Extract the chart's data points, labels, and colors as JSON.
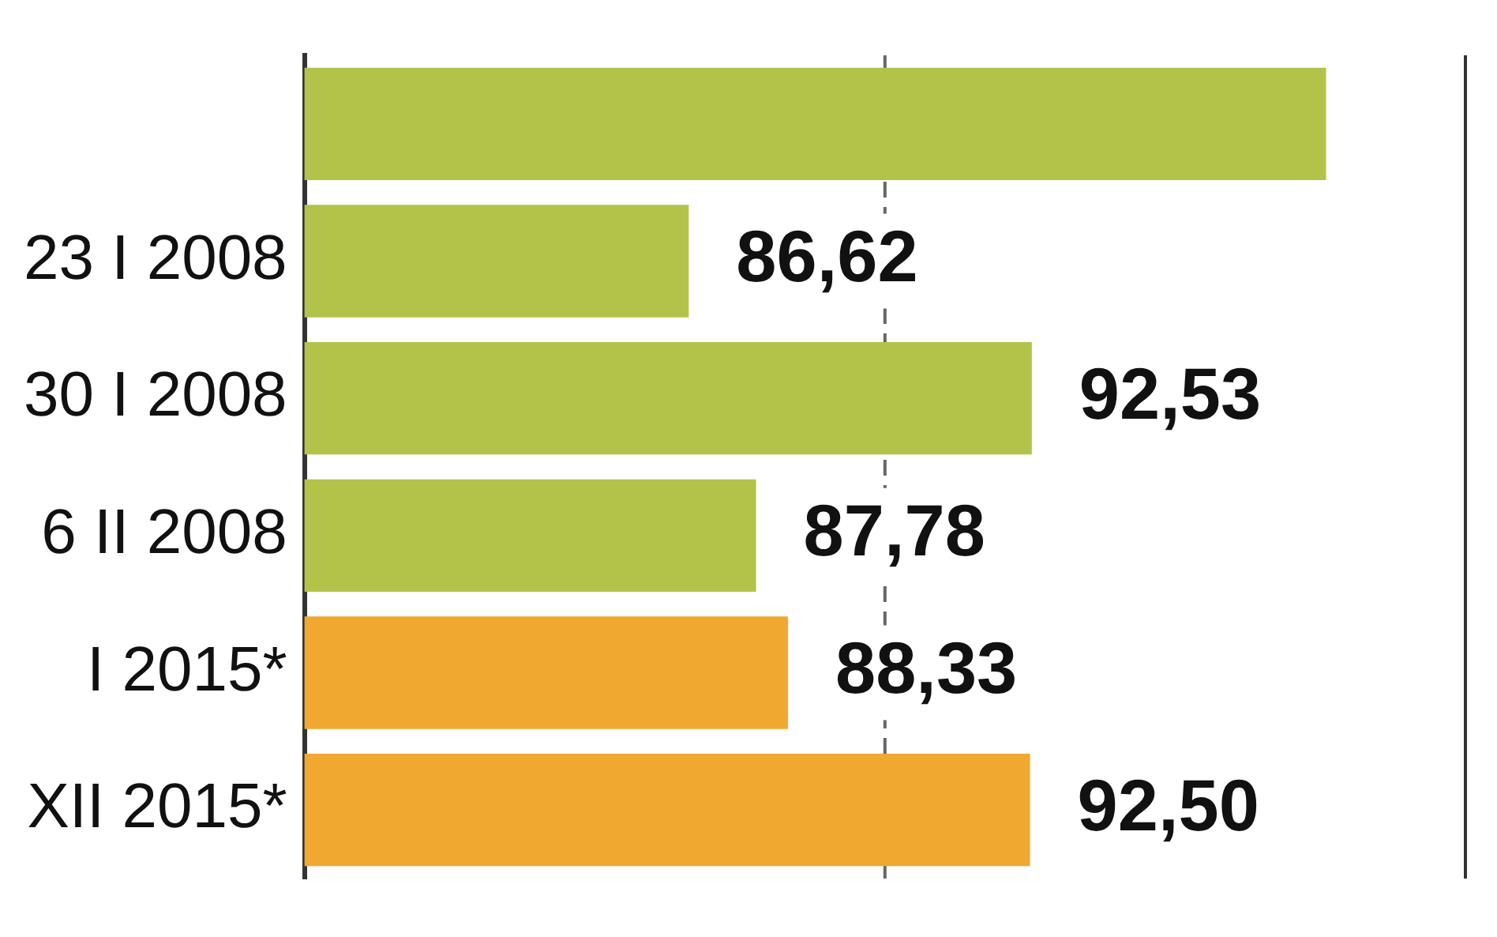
{
  "chart_data": {
    "type": "bar",
    "orientation": "horizontal",
    "categories": [
      null,
      "23 I 2008",
      "30 I 2008",
      "6 II 2008",
      "I 2015*",
      "XII 2015*"
    ],
    "values": [
      97.6,
      86.62,
      92.53,
      87.78,
      88.33,
      92.5
    ],
    "value_labels": [
      null,
      "86,62",
      "92,53",
      "87,78",
      "88,33",
      "92,50"
    ],
    "colors": [
      "#b3c34a",
      "#b3c34a",
      "#b3c34a",
      "#b3c34a",
      "#f0a830",
      "#f0a830"
    ],
    "xlim": [
      80,
      100
    ],
    "ref_lines": [
      {
        "axis": "x",
        "value": 90,
        "color": "#666666",
        "line_style": "dashed"
      }
    ],
    "tick_labels": "y",
    "legend": false
  }
}
